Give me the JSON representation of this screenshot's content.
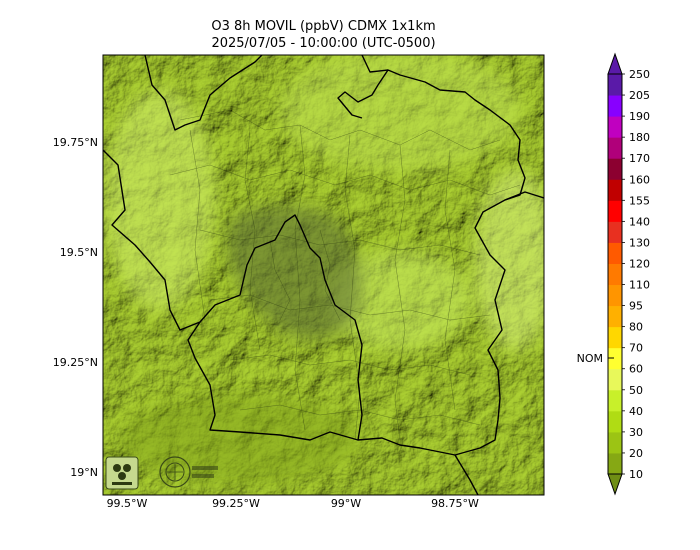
{
  "title": {
    "line1": "O3 8h MOVIL (ppbV) CDMX 1x1km",
    "line2": "2025/07/05 - 10:00:00 (UTC-0500)"
  },
  "map": {
    "lon_ticks": [
      "99.5°W",
      "99.25°W",
      "99°W",
      "98.75°W"
    ],
    "lat_ticks": [
      "19.75°N",
      "19.5°N",
      "19.25°N",
      "19°N"
    ],
    "logos": [
      "sedema-logo",
      "cdmx-logo"
    ]
  },
  "colorbar": {
    "levels": [
      "10",
      "20",
      "30",
      "40",
      "50",
      "60",
      "70",
      "80",
      "95",
      "110",
      "120",
      "130",
      "140",
      "155",
      "160",
      "170",
      "180",
      "190",
      "205",
      "250"
    ],
    "colors": [
      "#6f8e14",
      "#86a814",
      "#9cc414",
      "#b0dc14",
      "#c8f02a",
      "#e8f85a",
      "#ffff30",
      "#ffd700",
      "#ffb000",
      "#ff9500",
      "#ff7a00",
      "#ff5a00",
      "#e83020",
      "#ff0000",
      "#c00000",
      "#8c0030",
      "#b0007a",
      "#c000c0",
      "#8800ff",
      "#5a1aa8"
    ],
    "nom_label": "NOM",
    "nom_value": 65
  }
}
